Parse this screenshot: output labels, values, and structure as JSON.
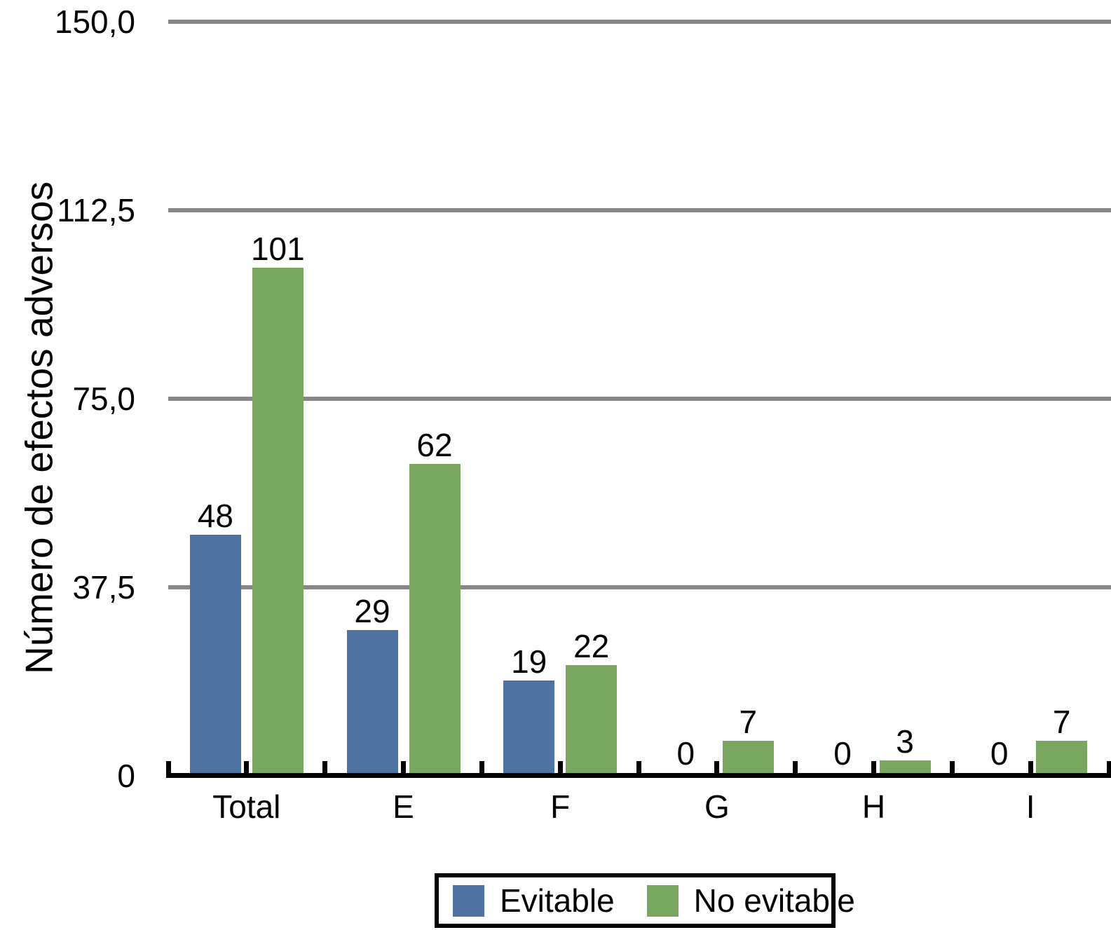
{
  "chart_data": {
    "type": "bar",
    "title": "",
    "categories": [
      "Total",
      "E",
      "F",
      "G",
      "H",
      "I"
    ],
    "series": [
      {
        "name": "Evitable",
        "color": "#4e72a2",
        "values": [
          48,
          29,
          19,
          0,
          0,
          0
        ]
      },
      {
        "name": "No evitable",
        "color": "#7aa75f",
        "values": [
          101,
          62,
          22,
          7,
          3,
          7
        ]
      }
    ],
    "xlabel": "",
    "ylabel": "Número de efectos adversos",
    "ylim": [
      0,
      150
    ],
    "yticks": [
      {
        "value": 0,
        "label": "0"
      },
      {
        "value": 37.5,
        "label": "37,5"
      },
      {
        "value": 75,
        "label": "75,0"
      },
      {
        "value": 112.5,
        "label": "112,5"
      },
      {
        "value": 150,
        "label": "150,0"
      }
    ],
    "grid": true,
    "grid_color": "#878787",
    "axis_color": "#000000",
    "text_color": "#000000",
    "background": "#ffffff",
    "legend_position": "bottom",
    "value_labels": true
  }
}
